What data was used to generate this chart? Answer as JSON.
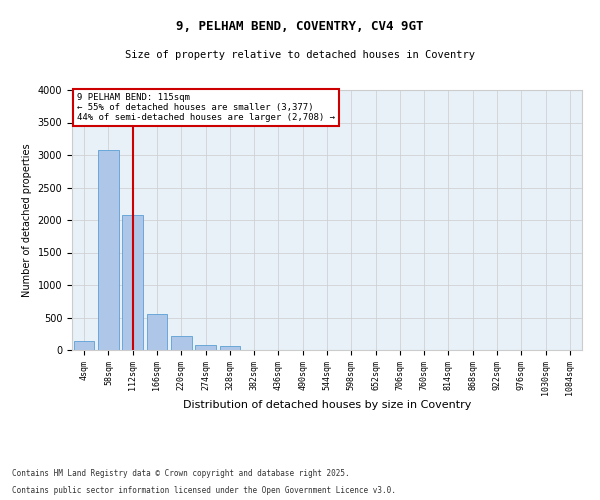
{
  "title_line1": "9, PELHAM BEND, COVENTRY, CV4 9GT",
  "title_line2": "Size of property relative to detached houses in Coventry",
  "xlabel": "Distribution of detached houses by size in Coventry",
  "ylabel": "Number of detached properties",
  "categories": [
    "4sqm",
    "58sqm",
    "112sqm",
    "166sqm",
    "220sqm",
    "274sqm",
    "328sqm",
    "382sqm",
    "436sqm",
    "490sqm",
    "544sqm",
    "598sqm",
    "652sqm",
    "706sqm",
    "760sqm",
    "814sqm",
    "868sqm",
    "922sqm",
    "976sqm",
    "1030sqm",
    "1084sqm"
  ],
  "values": [
    140,
    3080,
    2080,
    560,
    220,
    80,
    60,
    0,
    0,
    0,
    0,
    0,
    0,
    0,
    0,
    0,
    0,
    0,
    0,
    0,
    0
  ],
  "bar_color": "#aec6e8",
  "bar_edge_color": "#5a9fd4",
  "vline_x": 2,
  "vline_color": "#cc0000",
  "ylim": [
    0,
    4000
  ],
  "yticks": [
    0,
    500,
    1000,
    1500,
    2000,
    2500,
    3000,
    3500,
    4000
  ],
  "annotation_text": "9 PELHAM BEND: 115sqm\n← 55% of detached houses are smaller (3,377)\n44% of semi-detached houses are larger (2,708) →",
  "annotation_box_color": "#cc0000",
  "footer_line1": "Contains HM Land Registry data © Crown copyright and database right 2025.",
  "footer_line2": "Contains public sector information licensed under the Open Government Licence v3.0.",
  "background_color": "#ffffff",
  "plot_bg_color": "#e8f0f8",
  "grid_color": "#cccccc",
  "fig_width": 6.0,
  "fig_height": 5.0
}
